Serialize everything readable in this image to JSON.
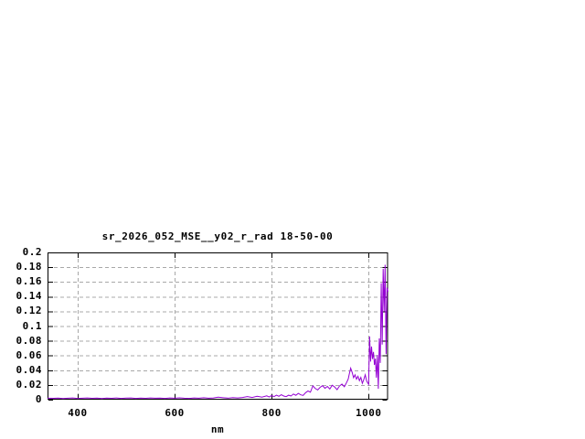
{
  "chart_data": {
    "type": "line",
    "title": "sr_2026_052_MSE__y02_r_rad 18-50-00",
    "xlabel": "nm",
    "ylabel": "",
    "xlim": [
      338,
      1040
    ],
    "ylim": [
      0,
      0.2
    ],
    "x_ticks": [
      400,
      600,
      800,
      1000
    ],
    "x_tick_labels": [
      "400",
      "600",
      "800",
      "1000"
    ],
    "y_ticks": [
      0,
      0.02,
      0.04,
      0.06,
      0.08,
      0.1,
      0.12,
      0.14,
      0.16,
      0.18,
      0.2
    ],
    "y_tick_labels": [
      "0",
      "0.02",
      "0.04",
      "0.06",
      "0.08",
      "0.1",
      "0.12",
      "0.14",
      "0.16",
      "0.18",
      "0.2"
    ],
    "grid": true,
    "legend": "off",
    "line_color": "#9400d3",
    "grid_color": "#a8a8a8",
    "frame_color": "#000000",
    "background_color": "#ffffff",
    "series": [
      {
        "points": [
          [
            338,
            0.002
          ],
          [
            350,
            0.0018
          ],
          [
            360,
            0.0022
          ],
          [
            370,
            0.0016
          ],
          [
            380,
            0.002
          ],
          [
            390,
            0.0023
          ],
          [
            400,
            0.0017
          ],
          [
            410,
            0.002
          ],
          [
            420,
            0.0024
          ],
          [
            430,
            0.0018
          ],
          [
            440,
            0.0021
          ],
          [
            450,
            0.0016
          ],
          [
            460,
            0.0022
          ],
          [
            470,
            0.0019
          ],
          [
            480,
            0.0024
          ],
          [
            490,
            0.0017
          ],
          [
            500,
            0.0021
          ],
          [
            510,
            0.0023
          ],
          [
            520,
            0.0017
          ],
          [
            530,
            0.0022
          ],
          [
            540,
            0.0018
          ],
          [
            550,
            0.0024
          ],
          [
            560,
            0.002
          ],
          [
            570,
            0.0022
          ],
          [
            580,
            0.0017
          ],
          [
            590,
            0.0023
          ],
          [
            600,
            0.002
          ],
          [
            610,
            0.0025
          ],
          [
            620,
            0.002
          ],
          [
            630,
            0.0017
          ],
          [
            640,
            0.0023
          ],
          [
            650,
            0.002
          ],
          [
            660,
            0.0026
          ],
          [
            670,
            0.002
          ],
          [
            680,
            0.0024
          ],
          [
            690,
            0.0034
          ],
          [
            700,
            0.0027
          ],
          [
            710,
            0.0021
          ],
          [
            720,
            0.0028
          ],
          [
            730,
            0.0023
          ],
          [
            740,
            0.003
          ],
          [
            750,
            0.0042
          ],
          [
            760,
            0.003
          ],
          [
            770,
            0.0046
          ],
          [
            780,
            0.0034
          ],
          [
            790,
            0.0052
          ],
          [
            795,
            0.0037
          ],
          [
            800,
            0.0056
          ],
          [
            805,
            0.0042
          ],
          [
            810,
            0.0062
          ],
          [
            815,
            0.0046
          ],
          [
            820,
            0.0068
          ],
          [
            825,
            0.005
          ],
          [
            830,
            0.0041
          ],
          [
            835,
            0.0061
          ],
          [
            840,
            0.005
          ],
          [
            845,
            0.0077
          ],
          [
            850,
            0.0059
          ],
          [
            855,
            0.0086
          ],
          [
            860,
            0.0066
          ],
          [
            865,
            0.0058
          ],
          [
            870,
            0.0094
          ],
          [
            875,
            0.0118
          ],
          [
            880,
            0.0102
          ],
          [
            885,
            0.0188
          ],
          [
            890,
            0.0152
          ],
          [
            895,
            0.0132
          ],
          [
            900,
            0.0168
          ],
          [
            905,
            0.019
          ],
          [
            910,
            0.0155
          ],
          [
            915,
            0.018
          ],
          [
            920,
            0.0145
          ],
          [
            925,
            0.0196
          ],
          [
            930,
            0.0172
          ],
          [
            935,
            0.0136
          ],
          [
            940,
            0.0186
          ],
          [
            945,
            0.0212
          ],
          [
            950,
            0.0176
          ],
          [
            955,
            0.0238
          ],
          [
            958,
            0.0282
          ],
          [
            960,
            0.0345
          ],
          [
            963,
            0.0428
          ],
          [
            966,
            0.0372
          ],
          [
            969,
            0.0298
          ],
          [
            972,
            0.0338
          ],
          [
            975,
            0.0278
          ],
          [
            978,
            0.0318
          ],
          [
            981,
            0.0258
          ],
          [
            984,
            0.0302
          ],
          [
            987,
            0.0222
          ],
          [
            990,
            0.0272
          ],
          [
            993,
            0.0338
          ],
          [
            996,
            0.0252
          ],
          [
            1000,
            0.0208
          ],
          [
            1002,
            0.0858
          ],
          [
            1004,
            0.0518
          ],
          [
            1006,
            0.0722
          ],
          [
            1008,
            0.0552
          ],
          [
            1010,
            0.0648
          ],
          [
            1012,
            0.0472
          ],
          [
            1014,
            0.0558
          ],
          [
            1016,
            0.0298
          ],
          [
            1018,
            0.0608
          ],
          [
            1020,
            0.0148
          ],
          [
            1022,
            0.0832
          ],
          [
            1024,
            0.0498
          ],
          [
            1026,
            0.1582
          ],
          [
            1028,
            0.0748
          ],
          [
            1030,
            0.1778
          ],
          [
            1032,
            0.1198
          ],
          [
            1034,
            0.1832
          ],
          [
            1036,
            0.0618
          ],
          [
            1038,
            0.1522
          ],
          [
            1040,
            0.1468
          ]
        ]
      }
    ]
  }
}
